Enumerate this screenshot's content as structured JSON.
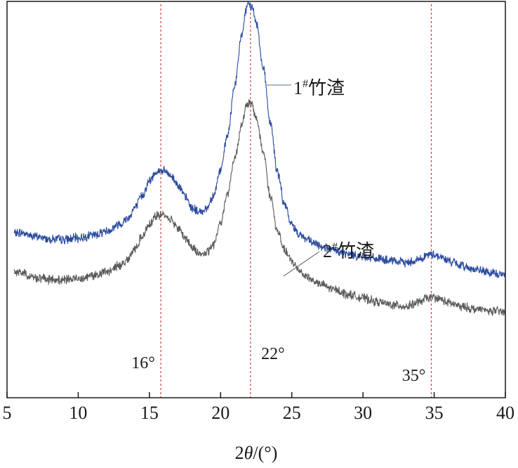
{
  "chart_data": {
    "type": "line",
    "title": "",
    "xlabel_prefix": "2",
    "xlabel_theta": "θ",
    "xlabel_suffix": "/(°)",
    "ylabel": "",
    "xlim": [
      5,
      40
    ],
    "xticks": [
      5,
      10,
      15,
      20,
      25,
      30,
      35,
      40
    ],
    "grid": false,
    "legend": "inline labels",
    "series": [
      {
        "name": "1#竹渣",
        "label_main": "1",
        "label_sup": "#",
        "label_text": "竹渣",
        "color": "#2a4a9f",
        "x": [
          5.5,
          6,
          7,
          8,
          9,
          10,
          11,
          12,
          13,
          13.5,
          14,
          14.5,
          15,
          15.5,
          16,
          16.5,
          17,
          17.5,
          18,
          18.5,
          19,
          19.5,
          20,
          20.5,
          21,
          21.5,
          21.8,
          22,
          22.2,
          22.5,
          23,
          23.5,
          24,
          24.5,
          25,
          25.5,
          26,
          26.5,
          27,
          28,
          29,
          30,
          31,
          32,
          33,
          34,
          34.5,
          35,
          35.5,
          36,
          37,
          38,
          39,
          40
        ],
        "y": [
          0.17,
          0.172,
          0.158,
          0.15,
          0.148,
          0.153,
          0.163,
          0.178,
          0.205,
          0.225,
          0.262,
          0.305,
          0.355,
          0.39,
          0.392,
          0.375,
          0.345,
          0.3,
          0.26,
          0.245,
          0.258,
          0.305,
          0.395,
          0.52,
          0.7,
          0.88,
          0.965,
          0.985,
          0.975,
          0.92,
          0.76,
          0.56,
          0.385,
          0.27,
          0.2,
          0.17,
          0.15,
          0.135,
          0.125,
          0.108,
          0.095,
          0.088,
          0.08,
          0.071,
          0.066,
          0.078,
          0.092,
          0.095,
          0.085,
          0.072,
          0.054,
          0.04,
          0.028,
          0.022
        ]
      },
      {
        "name": "2#竹渣",
        "label_main": "2",
        "label_sup": "#",
        "label_text": "竹渣",
        "color": "#5a5a5a",
        "x": [
          5.5,
          6,
          7,
          8,
          9,
          10,
          11,
          12,
          13,
          13.5,
          14,
          14.5,
          15,
          15.5,
          16,
          16.5,
          17,
          17.5,
          18,
          18.5,
          19,
          19.5,
          20,
          20.5,
          21,
          21.5,
          21.8,
          22,
          22.2,
          22.5,
          23,
          23.5,
          24,
          24.5,
          25,
          25.5,
          26,
          26.5,
          27,
          28,
          29,
          30,
          31,
          32,
          33,
          34,
          34.5,
          35,
          35.5,
          36,
          37,
          38,
          39,
          40
        ],
        "y": [
          0.035,
          0.03,
          0.012,
          0.005,
          0.004,
          0.01,
          0.02,
          0.032,
          0.058,
          0.08,
          0.115,
          0.16,
          0.205,
          0.232,
          0.235,
          0.22,
          0.19,
          0.155,
          0.12,
          0.098,
          0.098,
          0.13,
          0.21,
          0.315,
          0.44,
          0.56,
          0.62,
          0.635,
          0.625,
          0.58,
          0.46,
          0.3,
          0.175,
          0.11,
          0.07,
          0.04,
          0.018,
          0.002,
          -0.012,
          -0.03,
          -0.048,
          -0.06,
          -0.074,
          -0.084,
          -0.09,
          -0.075,
          -0.06,
          -0.058,
          -0.066,
          -0.078,
          -0.092,
          -0.1,
          -0.106,
          -0.11
        ]
      }
    ],
    "reference_lines": [
      {
        "x": 15.8,
        "label": "16°"
      },
      {
        "x": 22.1,
        "label": "22°"
      },
      {
        "x": 34.8,
        "label": "35°"
      }
    ],
    "ref_line_color": "#d04040"
  }
}
